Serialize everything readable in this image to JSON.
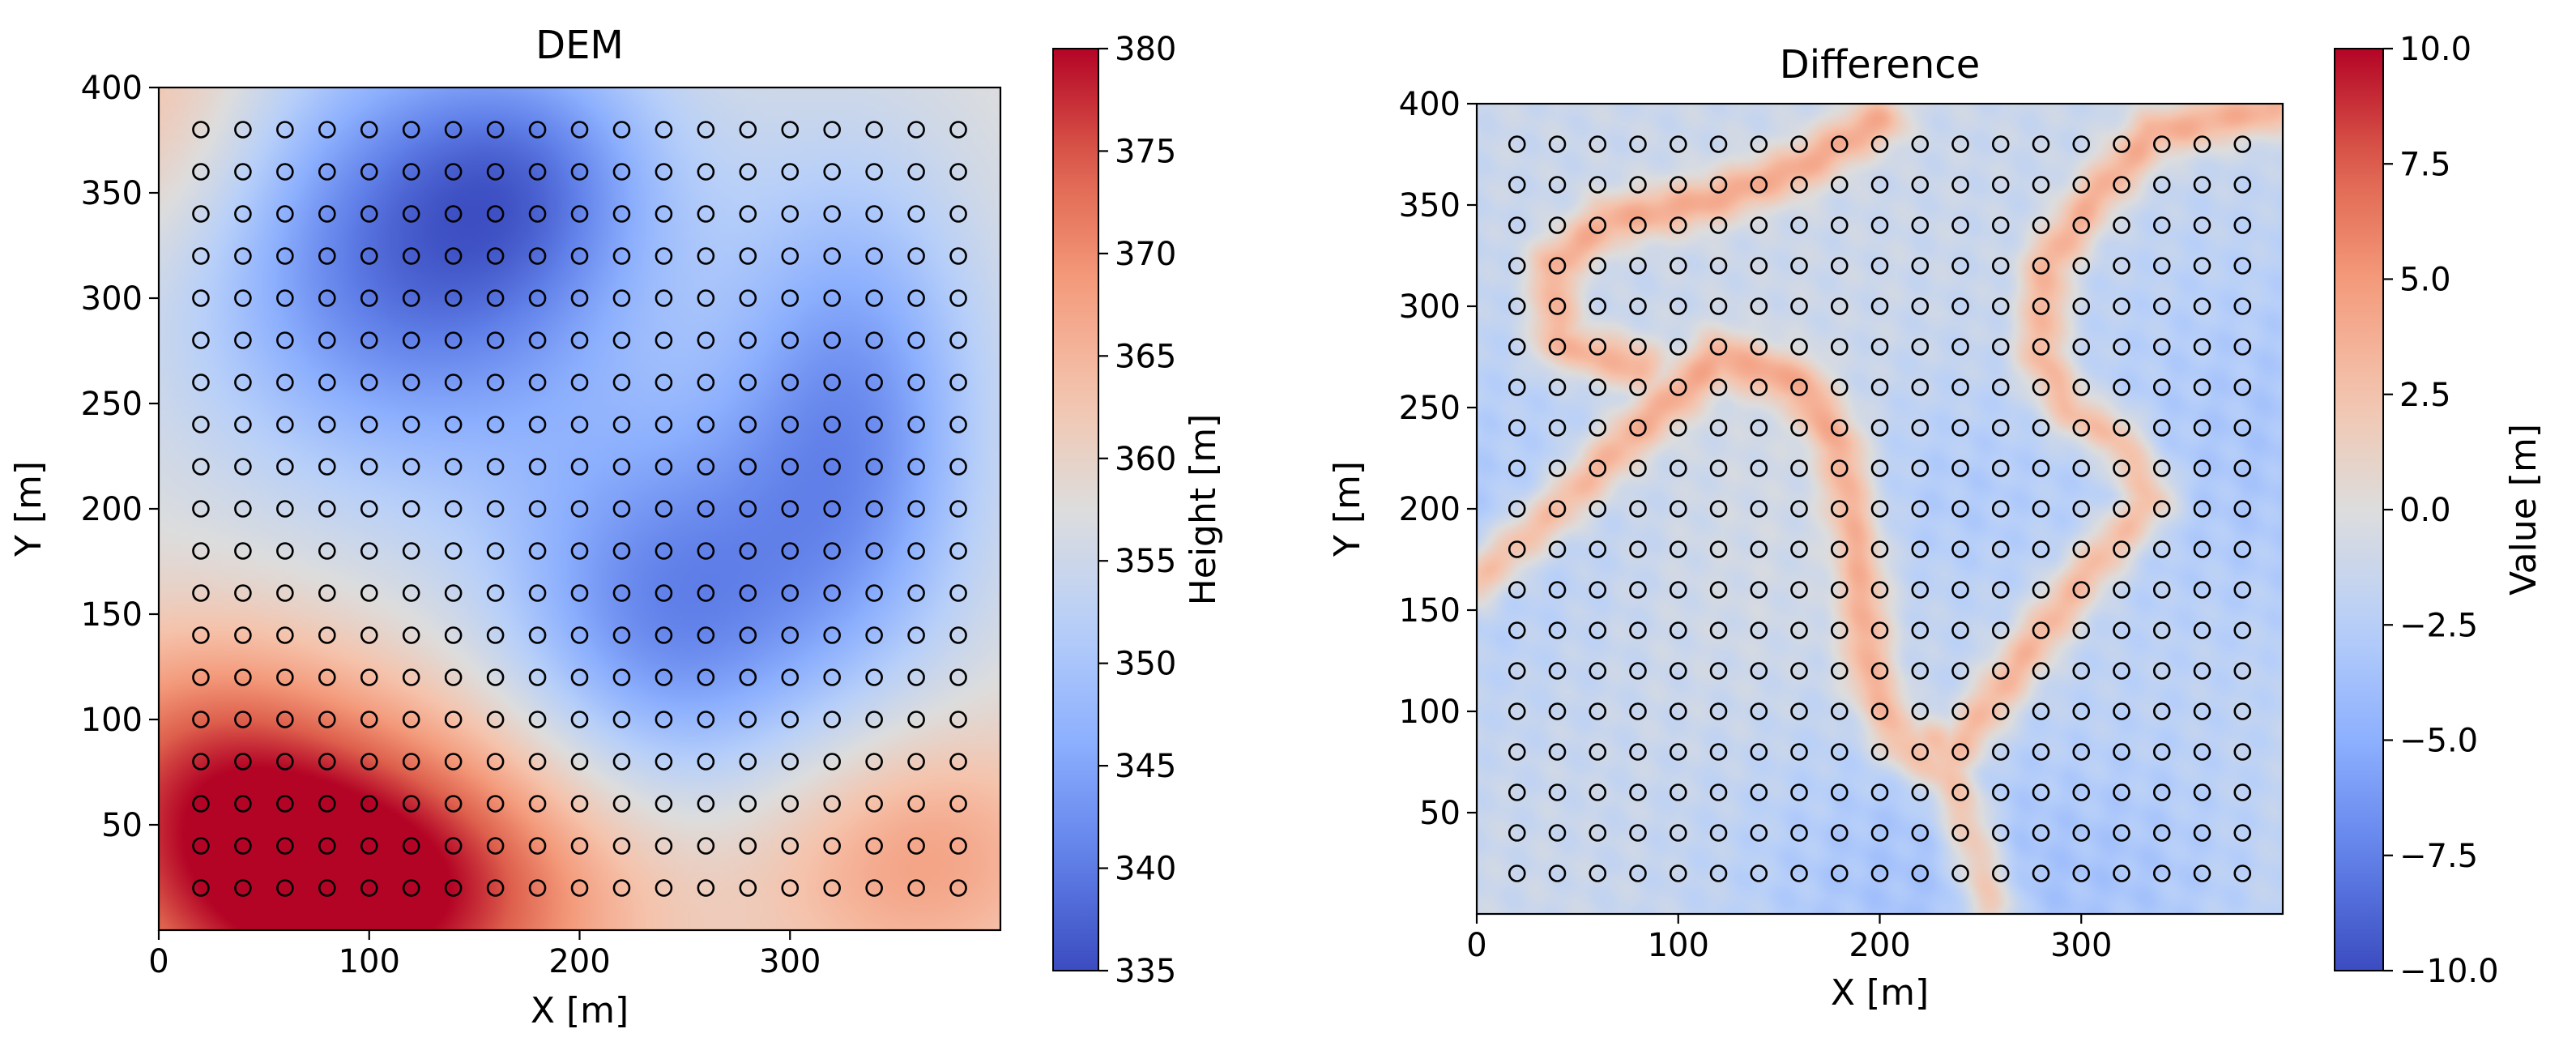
{
  "chart_data": [
    {
      "type": "heatmap",
      "title": "DEM",
      "xlabel": "X [m]",
      "ylabel": "Y [m]",
      "xlim": [
        0,
        400
      ],
      "ylim": [
        0,
        400
      ],
      "xticks": [
        0,
        100,
        200,
        300
      ],
      "yticks": [
        50,
        100,
        150,
        200,
        250,
        300,
        350,
        400
      ],
      "colormap": "coolwarm",
      "colorbar": {
        "label": "Height [m]",
        "range": [
          335,
          380
        ],
        "ticks": [
          "335",
          "340",
          "345",
          "350",
          "355",
          "360",
          "365",
          "370",
          "375",
          "380"
        ]
      },
      "field": {
        "base": 358,
        "bumps": [
          {
            "x": 90,
            "y": 20,
            "sx": 85,
            "sy": 55,
            "a": 26
          },
          {
            "x": 20,
            "y": 85,
            "sx": 55,
            "sy": 45,
            "a": 10
          },
          {
            "x": 360,
            "y": 35,
            "sx": 55,
            "sy": 45,
            "a": 10
          },
          {
            "x": 0,
            "y": 390,
            "sx": 45,
            "sy": 55,
            "a": 7
          },
          {
            "x": 120,
            "y": 320,
            "sx": 75,
            "sy": 75,
            "a": -19
          },
          {
            "x": 240,
            "y": 150,
            "sx": 55,
            "sy": 65,
            "a": -16
          },
          {
            "x": 330,
            "y": 240,
            "sx": 45,
            "sy": 85,
            "a": -15
          },
          {
            "x": 180,
            "y": 360,
            "sx": 45,
            "sy": 45,
            "a": -8
          }
        ]
      },
      "markers": {
        "start": 20,
        "end": 380,
        "step": 20,
        "style": "open-circle",
        "color": "#000000"
      }
    },
    {
      "type": "heatmap",
      "title": "Difference",
      "xlabel": "X [m]",
      "ylabel": "Y [m]",
      "xlim": [
        0,
        400
      ],
      "ylim": [
        0,
        400
      ],
      "xticks": [
        0,
        100,
        200,
        300
      ],
      "yticks": [
        50,
        100,
        150,
        200,
        250,
        300,
        350,
        400
      ],
      "colormap": "coolwarm",
      "colorbar": {
        "label": "Value [m]",
        "range": [
          -10,
          10
        ],
        "ticks": [
          "−10.0",
          "−7.5",
          "−5.0",
          "−2.5",
          "0.0",
          "2.5",
          "5.0",
          "7.5",
          "10.0"
        ]
      },
      "field": {
        "base": -1.2,
        "ridge_value": 5.2,
        "ridge_width": 9,
        "ridges": [
          [
            [
              0,
              165
            ],
            [
              40,
              200
            ],
            [
              75,
              235
            ],
            [
              120,
              275
            ],
            [
              160,
              262
            ],
            [
              180,
              232
            ],
            [
              190,
              175
            ],
            [
              195,
              118
            ],
            [
              210,
              85
            ],
            [
              232,
              70
            ],
            [
              245,
              90
            ],
            [
              270,
              125
            ],
            [
              300,
              165
            ],
            [
              335,
              205
            ],
            [
              318,
              235
            ],
            [
              295,
              248
            ],
            [
              280,
              275
            ],
            [
              283,
              320
            ],
            [
              305,
              352
            ],
            [
              335,
              385
            ],
            [
              395,
              398
            ]
          ],
          [
            [
              80,
              270
            ],
            [
              40,
              282
            ],
            [
              38,
              320
            ],
            [
              65,
              342
            ],
            [
              115,
              352
            ],
            [
              160,
              368
            ],
            [
              200,
              392
            ]
          ],
          [
            [
              228,
              85
            ],
            [
              240,
              55
            ],
            [
              255,
              5
            ]
          ]
        ],
        "blobs": [
          {
            "x": 0,
            "y": 200,
            "s": 70,
            "a": -1.8
          },
          {
            "x": 395,
            "y": 230,
            "s": 80,
            "a": -2.0
          },
          {
            "x": 200,
            "y": 15,
            "s": 60,
            "a": -2.0
          },
          {
            "x": 320,
            "y": 15,
            "s": 55,
            "a": -1.8
          },
          {
            "x": 120,
            "y": 190,
            "s": 70,
            "a": 0.8
          },
          {
            "x": 230,
            "y": 205,
            "s": 40,
            "a": -1.5
          }
        ]
      },
      "markers": {
        "start": 20,
        "end": 380,
        "step": 20,
        "style": "open-circle",
        "color": "#000000"
      }
    }
  ]
}
